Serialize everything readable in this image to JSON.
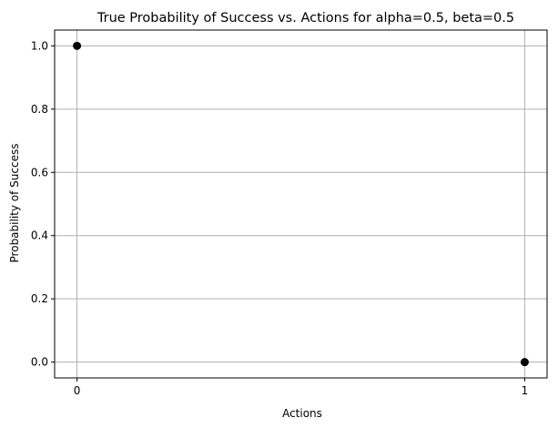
{
  "chart_data": {
    "type": "scatter",
    "title": "True Probability of Success vs. Actions for alpha=0.5, beta=0.5",
    "xlabel": "Actions",
    "ylabel": "Probability of Success",
    "x": [
      0,
      1
    ],
    "y": [
      1.0,
      0.0
    ],
    "xlim": [
      -0.05,
      1.05
    ],
    "ylim": [
      -0.05,
      1.05
    ],
    "xticks": [
      0,
      1
    ],
    "xtick_labels": [
      "0",
      "1"
    ],
    "yticks": [
      0.0,
      0.2,
      0.4,
      0.6,
      0.8,
      1.0
    ],
    "ytick_labels": [
      "0.0",
      "0.2",
      "0.4",
      "0.6",
      "0.8",
      "1.0"
    ],
    "grid": true,
    "marker_color": "#000000",
    "grid_color": "#b0b0b0"
  }
}
